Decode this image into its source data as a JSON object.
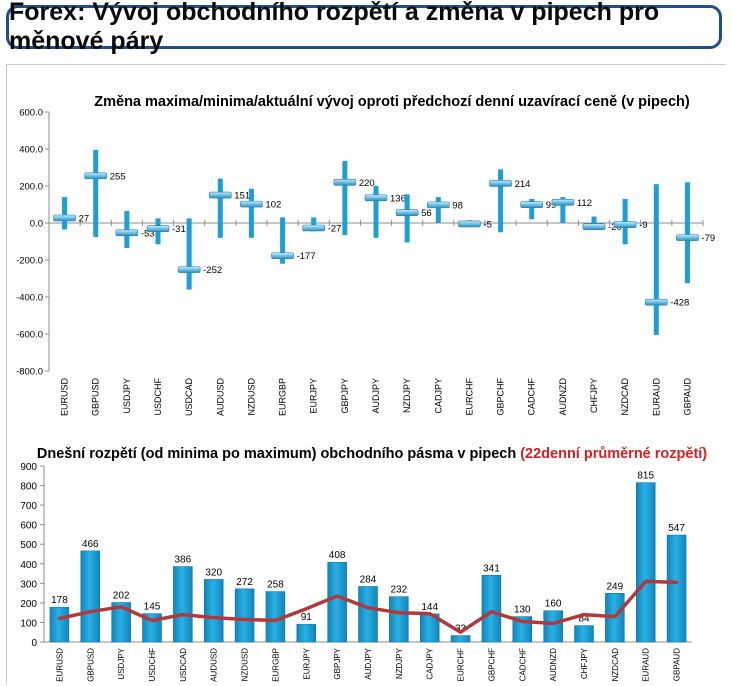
{
  "header": {
    "title": "Forex: Vývoj obchodního rozpětí a změna v pipech pro měnové páry"
  },
  "colors": {
    "bar": "#1a9fd6",
    "marker": "#6fc0e3",
    "avg_line": "#b2383a",
    "title_highlight": "#d42020",
    "text": "#000000"
  },
  "chart_data": [
    {
      "type": "bar",
      "title": "Změna maxima/minima/aktuální vývoj oproti předchozí denní uzavírací ceně (v pipech)",
      "categories": [
        "EURUSD",
        "GBPUSD",
        "USDJPY",
        "USDCHF",
        "USDCAD",
        "AUDUSD",
        "NZDUSD",
        "EURGBP",
        "EURJPY",
        "GBPJPY",
        "AUDJPY",
        "NZDJPY",
        "CADJPY",
        "EURCHF",
        "GBPCHF",
        "CADCHF",
        "AUDNZD",
        "CHFJPY",
        "NZDCAD",
        "EURAUD",
        "GBPAUD"
      ],
      "high": [
        140,
        395,
        65,
        25,
        25,
        240,
        185,
        30,
        30,
        335,
        200,
        155,
        140,
        15,
        290,
        130,
        140,
        35,
        130,
        210,
        220
      ],
      "low": [
        -35,
        -75,
        -135,
        -115,
        -360,
        -80,
        -80,
        -220,
        -45,
        -65,
        -80,
        -105,
        0,
        -15,
        -50,
        20,
        0,
        -30,
        -115,
        -605,
        -325
      ],
      "current": [
        27,
        255,
        -53,
        -31,
        -252,
        151,
        102,
        -177,
        -27,
        220,
        136,
        56,
        98,
        -5,
        214,
        99,
        112,
        -20,
        -9,
        -428,
        -79
      ],
      "labels": [
        "27",
        "255",
        "-53",
        "-31",
        "-252",
        "151",
        "102",
        "-177",
        "-27",
        "220",
        "136",
        "56",
        "98",
        "-5",
        "214",
        "99",
        "112",
        "-20",
        "-9",
        "-428",
        "-79"
      ],
      "ylim": [
        -800,
        600
      ],
      "yticks": [
        "600.0",
        "400.0",
        "200.0",
        "0.0",
        "-200.0",
        "-400.0",
        "-600.0",
        "-800.0"
      ],
      "grid": false
    },
    {
      "type": "bar",
      "title": "Dnešní rozpětí (od minima po maximum) obchodního pásma v pipech",
      "title_highlight": "(22denní průměrné rozpětí)",
      "categories": [
        "EURUSD",
        "GBPUSD",
        "USDJPY",
        "USDCHF",
        "USDCAD",
        "AUDUSD",
        "NZDUSD",
        "EURGBP",
        "EURJPY",
        "GBPJPY",
        "AUDJPY",
        "NZDJPY",
        "CADJPY",
        "EURCHF",
        "GBPCHF",
        "CADCHF",
        "AUDNZD",
        "CHFJPY",
        "NZDCAD",
        "EURAUD",
        "GBPAUD"
      ],
      "values": [
        178,
        466,
        202,
        145,
        386,
        320,
        272,
        258,
        91,
        408,
        284,
        232,
        144,
        33,
        341,
        130,
        160,
        84,
        249,
        815,
        547
      ],
      "avg_range": [
        120,
        155,
        180,
        110,
        140,
        125,
        115,
        110,
        170,
        235,
        175,
        150,
        145,
        50,
        155,
        105,
        95,
        140,
        130,
        310,
        305
      ],
      "ylim": [
        0,
        900
      ],
      "yticks": [
        "900",
        "800",
        "700",
        "600",
        "500",
        "400",
        "300",
        "200",
        "100",
        "0"
      ],
      "grid": false
    }
  ]
}
